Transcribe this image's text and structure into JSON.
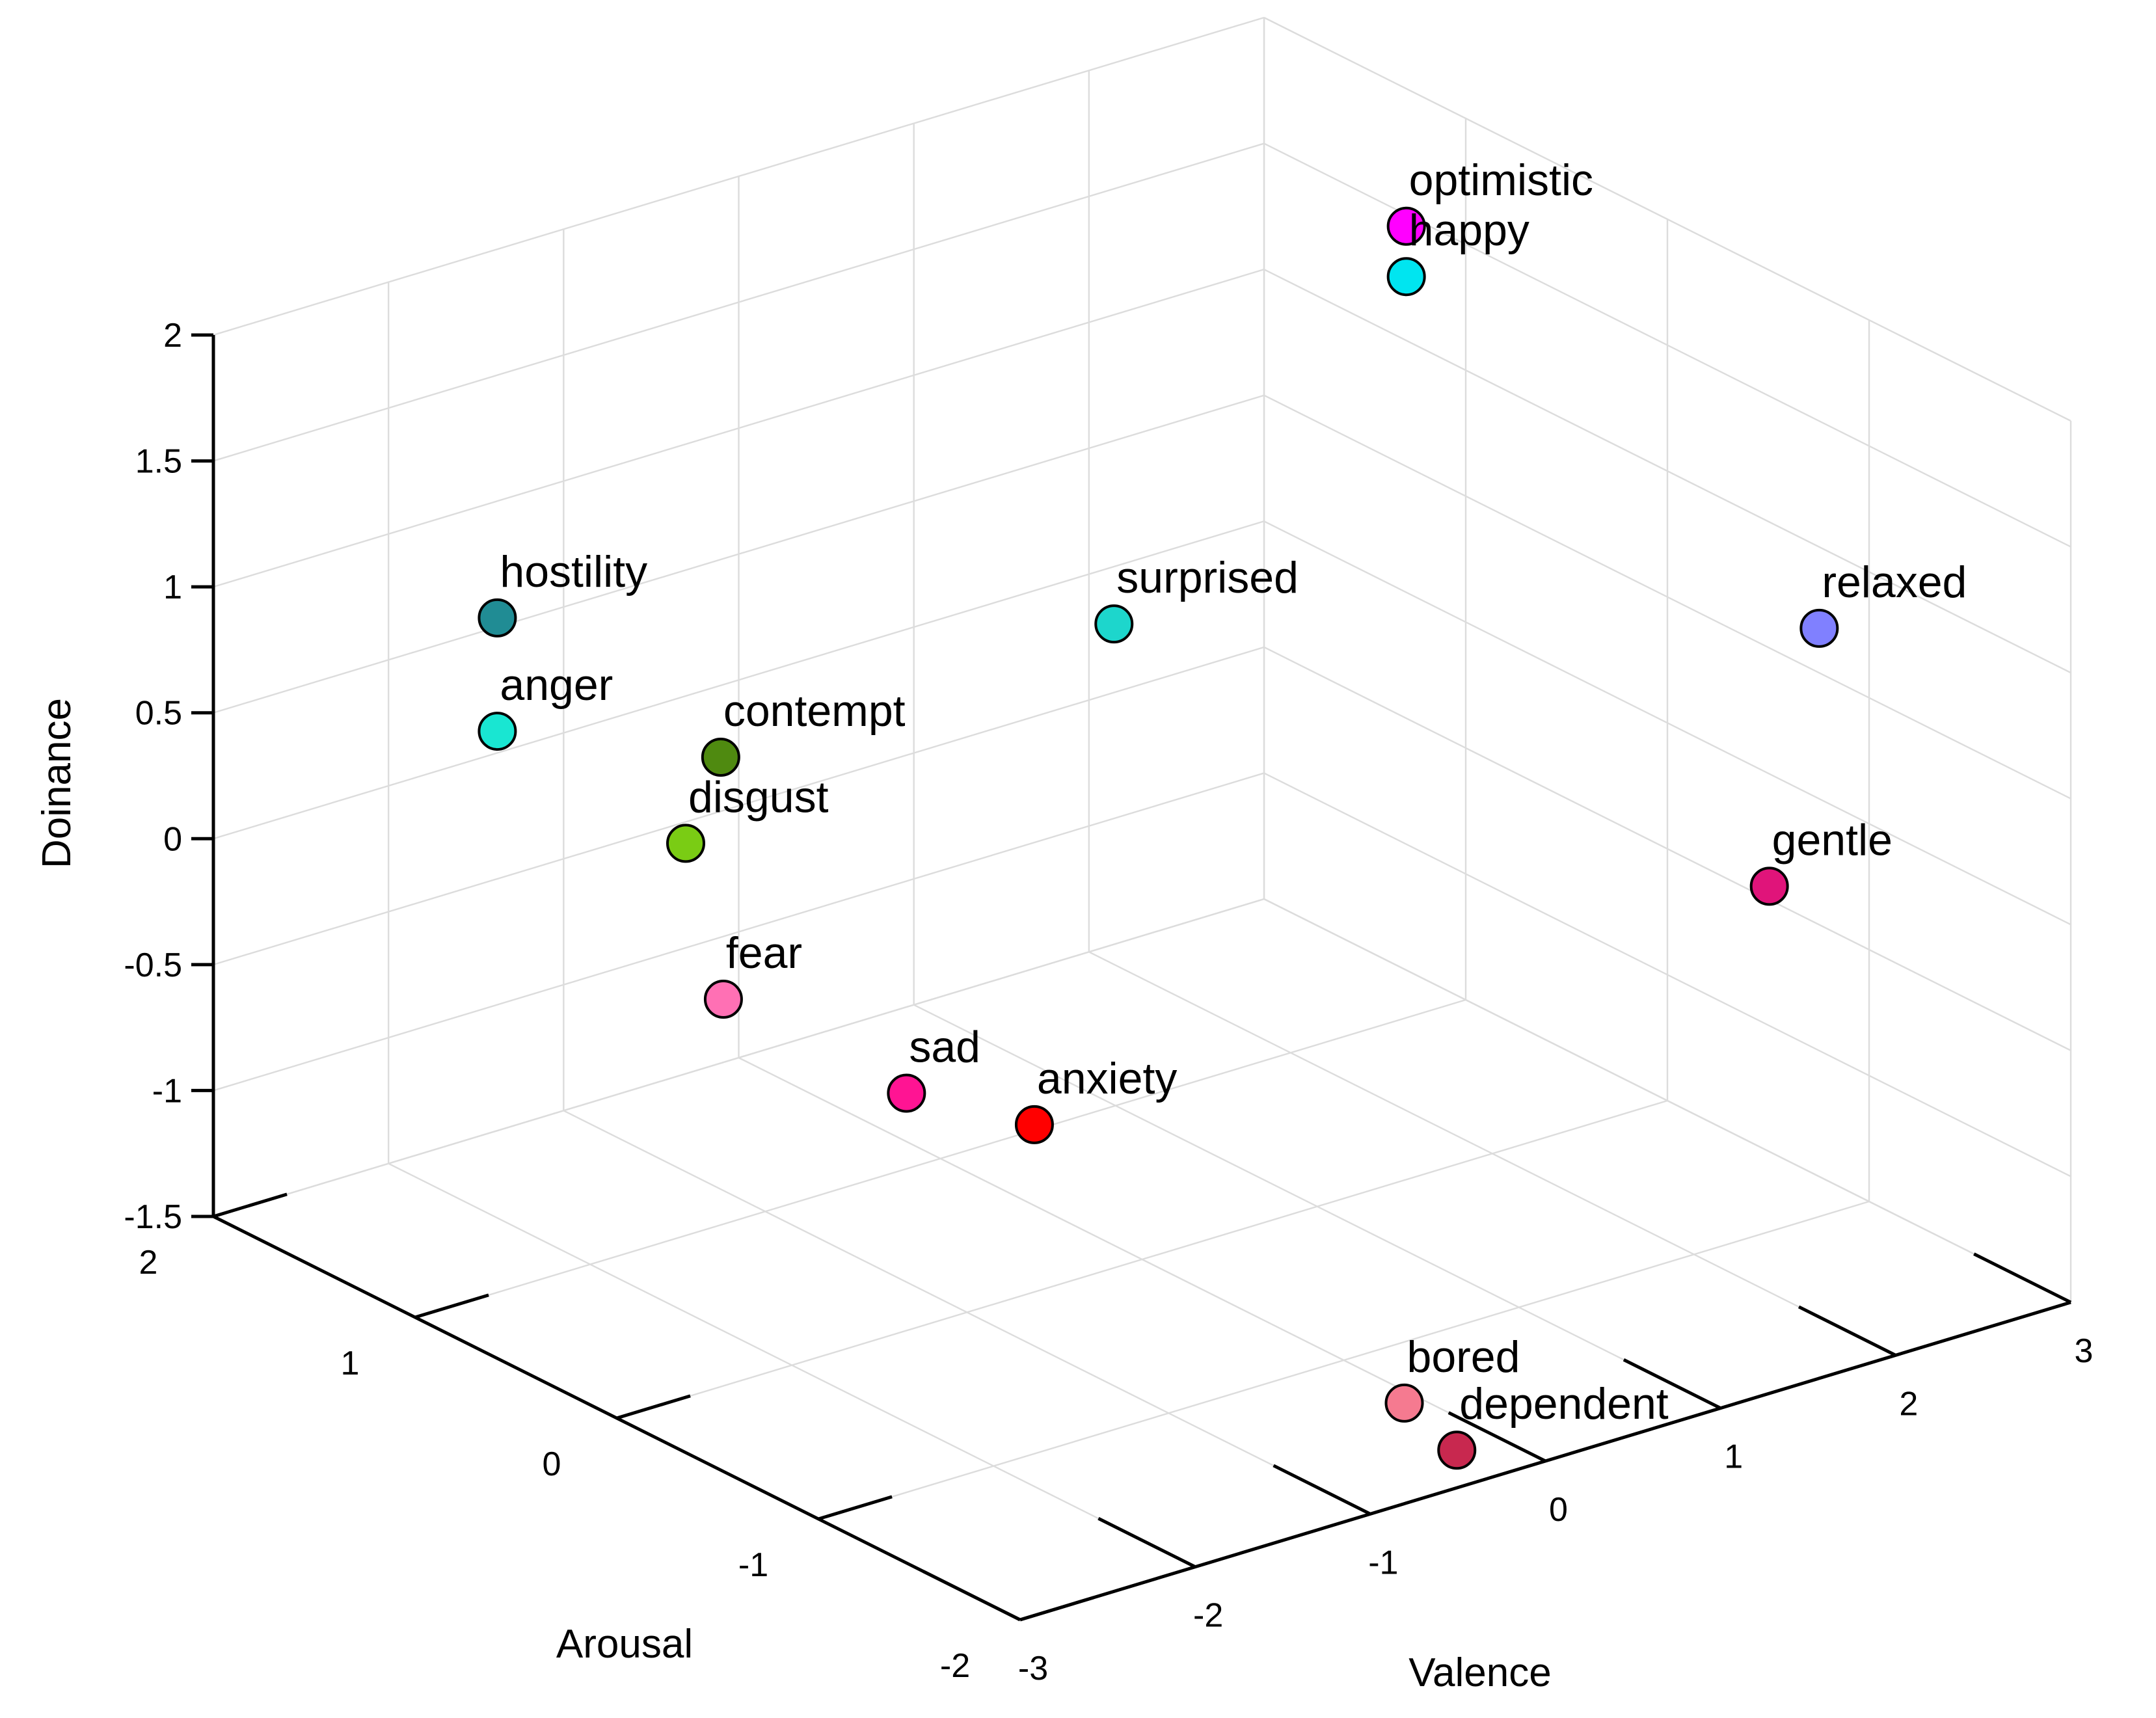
{
  "chart_data": {
    "type": "scatter",
    "dimensions": 3,
    "xlabel": "Valence",
    "ylabel": "Arousal",
    "zlabel": "Doinance",
    "xlim": [
      -3,
      3
    ],
    "ylim": [
      -2,
      2
    ],
    "zlim": [
      -1.5,
      2
    ],
    "xticks": [
      "-3",
      "-2",
      "-1",
      "0",
      "1",
      "2",
      "3"
    ],
    "yticks": [
      "-2",
      "-1",
      "0",
      "1",
      "2"
    ],
    "zticks": [
      "-1.5",
      "-1",
      "-0.5",
      "0",
      "0.5",
      "1",
      "1.5",
      "2"
    ],
    "grid": true,
    "points": [
      {
        "label": "optimistic",
        "x": 2.2,
        "y": 0.6,
        "z": 1.9,
        "color": "#ff00ff"
      },
      {
        "label": "happy",
        "x": 2.2,
        "y": 0.6,
        "z": 1.7,
        "color": "#00e5f0"
      },
      {
        "label": "relaxed",
        "x": 2.6,
        "y": -1.1,
        "z": 0.9,
        "color": "#8080ff"
      },
      {
        "label": "gentle",
        "x": 2.2,
        "y": -1.2,
        "z": 0.0,
        "color": "#e0147a"
      },
      {
        "label": "surprised",
        "x": 0.3,
        "y": 0.4,
        "z": 0.8,
        "color": "#1dd6cc"
      },
      {
        "label": "hostility",
        "x": -2.3,
        "y": 1.2,
        "z": 1.05,
        "color": "#208c94"
      },
      {
        "label": "contempt",
        "x": -1.6,
        "y": 0.7,
        "z": 0.55,
        "color": "#4f8a10"
      },
      {
        "label": "anger",
        "x": -2.3,
        "y": 1.2,
        "z": 0.6,
        "color": "#19e6d2"
      },
      {
        "label": "disgust",
        "x": -1.8,
        "y": 0.7,
        "z": 0.25,
        "color": "#7acc14"
      },
      {
        "label": "fear",
        "x": -1.7,
        "y": 0.6,
        "z": -0.35,
        "color": "#ff70b4"
      },
      {
        "label": "sad",
        "x": -1.0,
        "y": 0.3,
        "z": -0.75,
        "color": "#ff1493"
      },
      {
        "label": "anxiety",
        "x": -0.5,
        "y": 0.1,
        "z": -0.9,
        "color": "#ff0000"
      },
      {
        "label": "bored",
        "x": 0.0,
        "y": -1.3,
        "z": -1.55,
        "color": "#f57a90"
      },
      {
        "label": "dependent",
        "x": 0.3,
        "y": -1.3,
        "z": -1.8,
        "color": "#c8284f"
      }
    ]
  }
}
